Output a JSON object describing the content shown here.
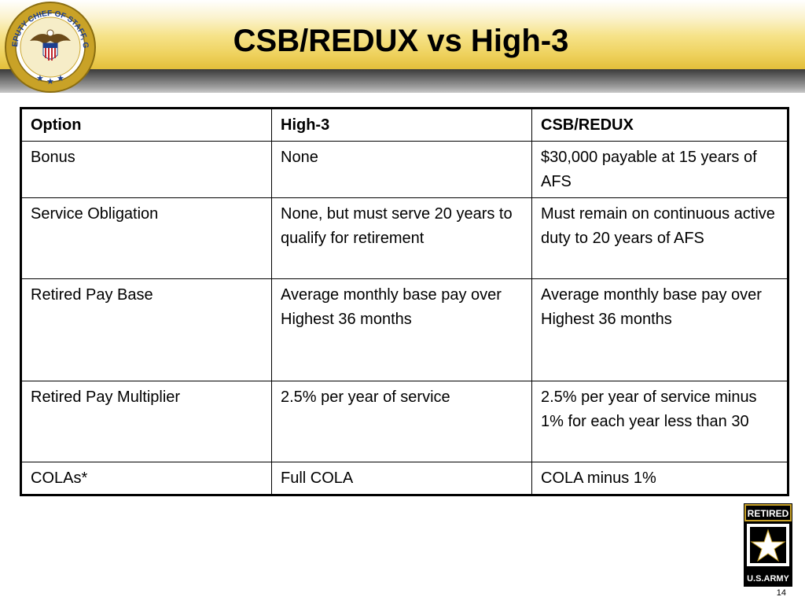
{
  "slide": {
    "title": "CSB/REDUX vs High-3",
    "page_number": "14"
  },
  "seal": {
    "text": "DEPUTY CHIEF OF STAFF, G1"
  },
  "table": {
    "headers": [
      "Option",
      "High-3",
      "CSB/REDUX"
    ],
    "rows": [
      [
        "Bonus",
        "None",
        "$30,000 payable at 15 years of AFS"
      ],
      [
        "Service Obligation",
        "None, but must serve 20 years to qualify for retirement",
        "Must remain on continuous active duty to 20 years of AFS"
      ],
      [
        "Retired Pay Base",
        "Average monthly base pay over Highest 36 months",
        "Average monthly base pay over Highest 36 months"
      ],
      [
        "Retired Pay Multiplier",
        "2.5% per year of service",
        "2.5% per year of service minus 1% for each year less than 30"
      ],
      [
        "COLAs*",
        "Full COLA",
        "COLA  minus 1%"
      ]
    ]
  },
  "army_logo": {
    "top_text": "RETIRED",
    "bottom_text": "U.S.ARMY"
  },
  "colors": {
    "banner_gold": "#e3bf3a",
    "banner_dark": "#3a3a3a",
    "seal_gold": "#c9a227",
    "seal_blue": "#1d3f8f"
  }
}
